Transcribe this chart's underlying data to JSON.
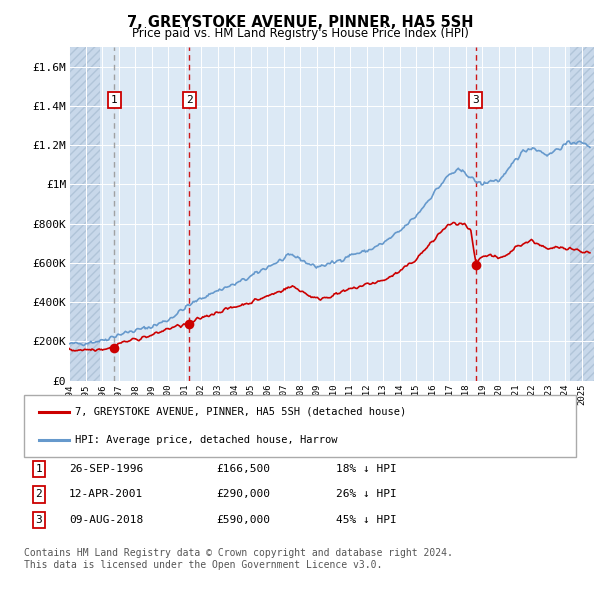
{
  "title": "7, GREYSTOKE AVENUE, PINNER, HA5 5SH",
  "subtitle": "Price paid vs. HM Land Registry's House Price Index (HPI)",
  "ylim": [
    0,
    1700000
  ],
  "xlim_start": 1994.0,
  "xlim_end": 2025.75,
  "yticks": [
    0,
    200000,
    400000,
    600000,
    800000,
    1000000,
    1200000,
    1400000,
    1600000
  ],
  "ytick_labels": [
    "£0",
    "£200K",
    "£400K",
    "£600K",
    "£800K",
    "£1M",
    "£1.2M",
    "£1.4M",
    "£1.6M"
  ],
  "xticks": [
    1994,
    1995,
    1996,
    1997,
    1998,
    1999,
    2000,
    2001,
    2002,
    2003,
    2004,
    2005,
    2006,
    2007,
    2008,
    2009,
    2010,
    2011,
    2012,
    2013,
    2014,
    2015,
    2016,
    2017,
    2018,
    2019,
    2020,
    2021,
    2022,
    2023,
    2024,
    2025
  ],
  "sale_dates": [
    1996.74,
    2001.28,
    2018.61
  ],
  "sale_prices": [
    166500,
    290000,
    590000
  ],
  "sale_labels": [
    "1",
    "2",
    "3"
  ],
  "legend_red": "7, GREYSTOKE AVENUE, PINNER, HA5 5SH (detached house)",
  "legend_blue": "HPI: Average price, detached house, Harrow",
  "table_rows": [
    [
      "1",
      "26-SEP-1996",
      "£166,500",
      "18% ↓ HPI"
    ],
    [
      "2",
      "12-APR-2001",
      "£290,000",
      "26% ↓ HPI"
    ],
    [
      "3",
      "09-AUG-2018",
      "£590,000",
      "45% ↓ HPI"
    ]
  ],
  "footnote1": "Contains HM Land Registry data © Crown copyright and database right 2024.",
  "footnote2": "This data is licensed under the Open Government Licence v3.0.",
  "red_line_color": "#cc0000",
  "blue_line_color": "#6699cc",
  "vline_color_sale": "#cc0000",
  "vline_color_grey": "#aaaaaa",
  "bg_color": "#dce9f5",
  "hatch_bg_color": "#c8d8ea"
}
